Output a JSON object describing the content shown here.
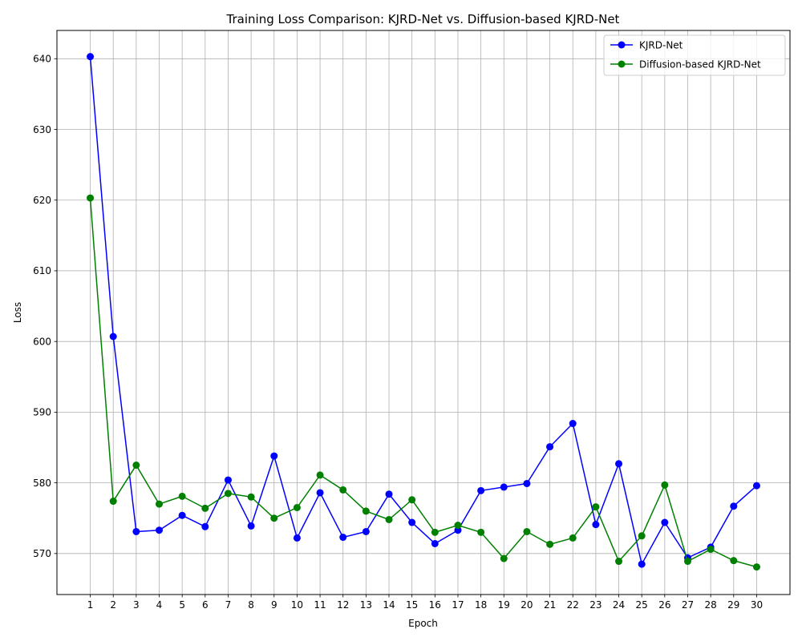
{
  "chart_data": {
    "type": "line",
    "title": "Training Loss Comparison: KJRD-Net vs. Diffusion-based KJRD-Net",
    "xlabel": "Epoch",
    "ylabel": "Loss",
    "x": [
      1,
      2,
      3,
      4,
      5,
      6,
      7,
      8,
      9,
      10,
      11,
      12,
      13,
      14,
      15,
      16,
      17,
      18,
      19,
      20,
      21,
      22,
      23,
      24,
      25,
      26,
      27,
      28,
      29,
      30
    ],
    "xlim": [
      -0.45,
      31.45
    ],
    "ylim": [
      564.2,
      644.0
    ],
    "yticks": [
      570,
      580,
      590,
      600,
      610,
      620,
      630,
      640
    ],
    "grid": true,
    "legend_position": "top-right",
    "series": [
      {
        "name": "KJRD-Net",
        "color": "#0000ff",
        "marker": "circle",
        "values": [
          640.3,
          600.7,
          573.1,
          573.3,
          575.4,
          573.8,
          580.4,
          573.9,
          583.8,
          572.2,
          578.6,
          572.3,
          573.1,
          578.4,
          574.4,
          571.4,
          573.3,
          578.9,
          579.4,
          579.9,
          585.1,
          588.4,
          574.1,
          582.7,
          568.5,
          574.4,
          569.4,
          570.9,
          576.7,
          579.6
        ]
      },
      {
        "name": "Diffusion-based KJRD-Net",
        "color": "#008000",
        "marker": "circle",
        "values": [
          620.3,
          577.4,
          582.5,
          577.0,
          578.1,
          576.4,
          578.5,
          578.0,
          575.0,
          576.5,
          581.1,
          579.0,
          576.0,
          574.8,
          577.6,
          573.0,
          574.0,
          573.0,
          569.3,
          573.1,
          571.3,
          572.2,
          576.6,
          568.9,
          572.5,
          579.7,
          568.9,
          570.6,
          569.0,
          568.1
        ]
      }
    ]
  }
}
